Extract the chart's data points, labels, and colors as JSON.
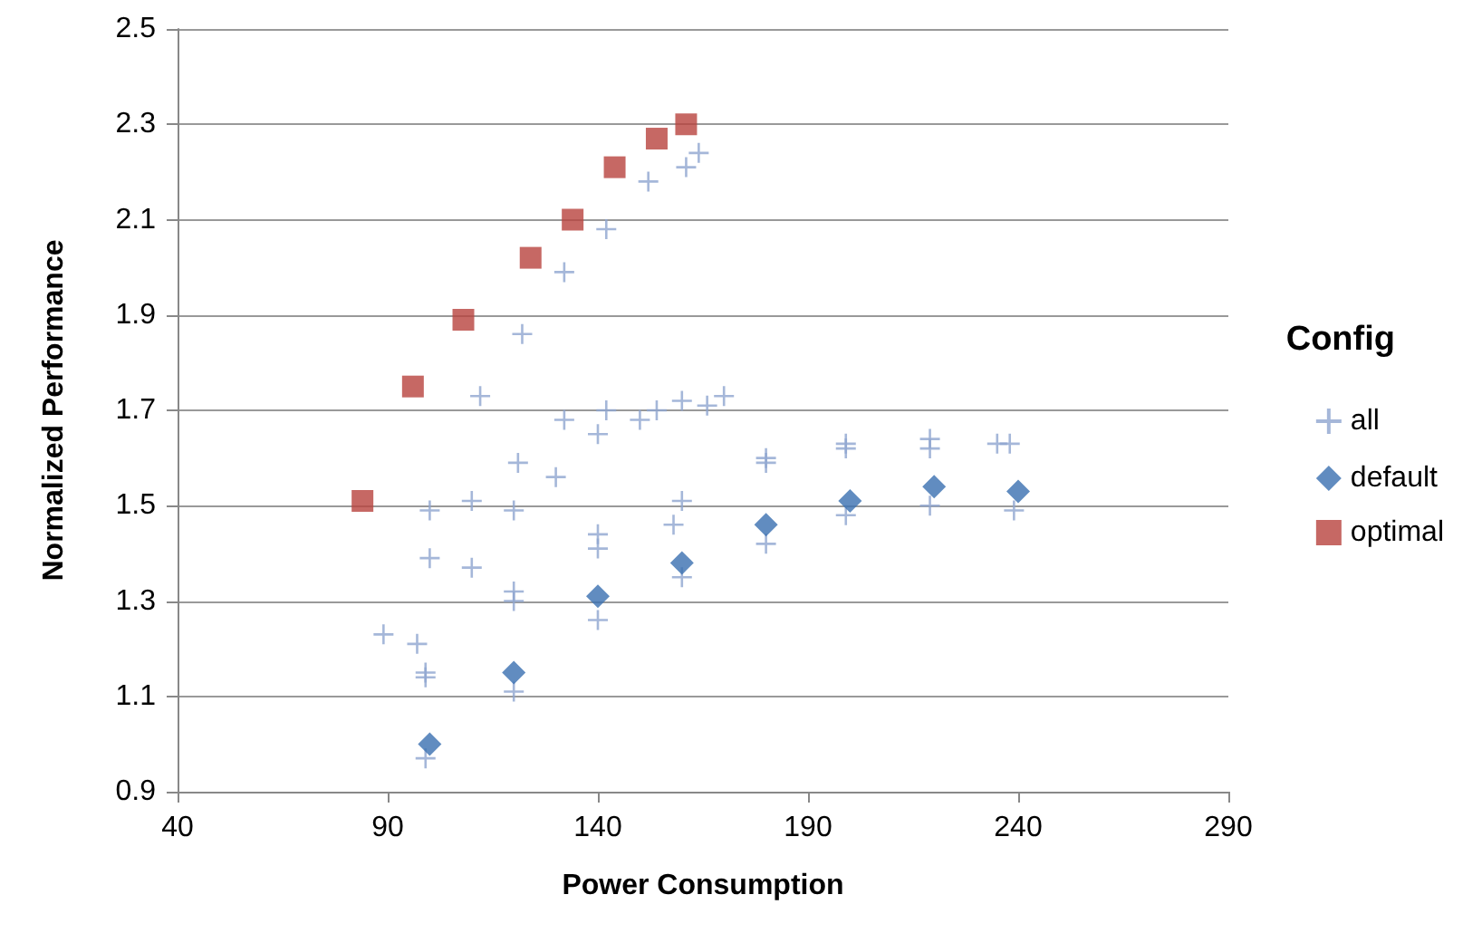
{
  "chart_data": {
    "type": "scatter",
    "xlabel": "Power Consumption",
    "ylabel": "Normalized Performance",
    "legend_title": "Config",
    "legend": "right",
    "grid": "y",
    "xlim": [
      40,
      290
    ],
    "xticks": [
      40,
      90,
      140,
      190,
      240,
      290
    ],
    "ylim": [
      0.9,
      2.5
    ],
    "yticks": [
      0.9,
      1.1,
      1.3,
      1.5,
      1.7,
      1.9,
      2.1,
      2.3,
      2.5
    ],
    "series": [
      {
        "name": "all",
        "color": "#8fa5cf",
        "marker": "cross",
        "x": [
          152,
          161,
          164,
          142,
          132,
          122,
          112,
          132,
          142,
          140,
          150,
          154,
          160,
          166,
          170,
          121,
          130,
          180,
          180,
          100,
          110,
          120,
          160,
          158,
          140,
          140,
          100,
          110,
          120,
          120,
          140,
          160,
          180,
          89,
          97,
          99,
          99,
          120,
          99,
          199,
          199,
          199,
          219,
          219,
          219,
          235,
          238,
          239
        ],
        "values": [
          2.18,
          2.21,
          2.24,
          2.08,
          1.99,
          1.86,
          1.73,
          1.68,
          1.7,
          1.65,
          1.68,
          1.7,
          1.72,
          1.71,
          1.73,
          1.59,
          1.56,
          1.59,
          1.6,
          1.49,
          1.51,
          1.49,
          1.51,
          1.46,
          1.44,
          1.41,
          1.39,
          1.37,
          1.32,
          1.3,
          1.26,
          1.35,
          1.42,
          1.23,
          1.21,
          1.15,
          1.14,
          1.11,
          0.97,
          1.63,
          1.62,
          1.48,
          1.64,
          1.62,
          1.5,
          1.63,
          1.63,
          1.49
        ]
      },
      {
        "name": "default",
        "color": "#3a6fb0",
        "marker": "diamond",
        "x": [
          100,
          120,
          140,
          160,
          180,
          200,
          220,
          240
        ],
        "values": [
          1.0,
          1.15,
          1.31,
          1.38,
          1.46,
          1.51,
          1.54,
          1.53
        ]
      },
      {
        "name": "optimal",
        "color": "#b8423d",
        "marker": "square",
        "x": [
          84,
          96,
          108,
          124,
          134,
          144,
          154,
          161
        ],
        "values": [
          1.51,
          1.75,
          1.89,
          2.02,
          2.1,
          2.21,
          2.27,
          2.3
        ]
      }
    ]
  }
}
